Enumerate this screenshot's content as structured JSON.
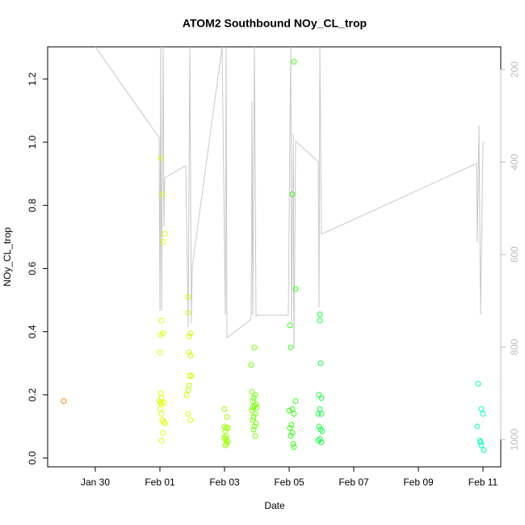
{
  "chart_data": {
    "type": "scatter",
    "title": "ATOM2 Southbound NOy_CL_trop",
    "x_label": "Date",
    "y_label": "NOy_CL_trop",
    "xlim": [
      28.525,
      42.55
    ],
    "ylim": [
      -0.028,
      1.302
    ],
    "y2lim": [
      1059,
      151
    ],
    "xticks": [
      {
        "value": 30,
        "label": "Jan 30"
      },
      {
        "value": 32,
        "label": "Feb 01"
      },
      {
        "value": 34,
        "label": "Feb 03"
      },
      {
        "value": 36,
        "label": "Feb 05"
      },
      {
        "value": 38,
        "label": "Feb 07"
      },
      {
        "value": 40,
        "label": "Feb 09"
      },
      {
        "value": 42,
        "label": "Feb 11"
      }
    ],
    "yticks": [
      {
        "value": 0,
        "label": "0.0"
      },
      0.2,
      0.4,
      0.6,
      0.8,
      {
        "value": 1,
        "label": "1.0"
      },
      1.2
    ],
    "y2ticks": [
      200,
      400,
      600,
      800,
      1000
    ],
    "y2_color": "#bbbbbb",
    "series": [
      {
        "color": "#ff8000",
        "x": [
          29.025
        ],
        "values": [
          0.18
        ]
      },
      {
        "color": "#e0ff00",
        "x": [
          32.025,
          32.075,
          32.15,
          32.1,
          32.05,
          32.1,
          32.025,
          32.0,
          32.025,
          32.05,
          31.975,
          32.025,
          32.125,
          32.05,
          32.0,
          32.05,
          32.075,
          32.125,
          32.15,
          32.1,
          32.05
        ],
        "values": [
          0.95,
          0.835,
          0.71,
          0.685,
          0.435,
          0.395,
          0.39,
          0.335,
          0.205,
          0.19,
          0.18,
          0.175,
          0.175,
          0.17,
          0.155,
          0.14,
          0.12,
          0.115,
          0.11,
          0.08,
          0.055
        ]
      },
      {
        "color": "#c8ff00",
        "x": [
          32.875,
          32.875,
          32.95,
          32.9,
          32.9,
          32.95,
          32.925,
          32.975,
          32.9,
          32.875,
          32.825,
          32.875,
          32.95
        ],
        "values": [
          0.51,
          0.46,
          0.395,
          0.385,
          0.335,
          0.325,
          0.26,
          0.26,
          0.23,
          0.215,
          0.2,
          0.14,
          0.12
        ]
      },
      {
        "color": "#99ff00",
        "x": [
          34.0,
          34.075,
          34.0,
          34.05,
          34.1,
          34.025,
          34.05,
          34.0,
          34.025,
          34.075,
          34.1,
          34.05,
          34.025
        ],
        "values": [
          0.155,
          0.13,
          0.1,
          0.095,
          0.095,
          0.085,
          0.07,
          0.065,
          0.06,
          0.055,
          0.05,
          0.045,
          0.04
        ]
      },
      {
        "color": "#6eff00",
        "x": [
          34.925,
          34.825,
          34.85,
          34.95,
          34.9,
          34.875,
          34.975,
          34.925,
          34.875,
          35.0,
          34.85,
          34.95,
          34.9,
          34.875,
          34.975,
          34.925,
          34.9,
          34.95
        ],
        "values": [
          0.35,
          0.295,
          0.21,
          0.2,
          0.19,
          0.18,
          0.17,
          0.165,
          0.16,
          0.16,
          0.15,
          0.14,
          0.13,
          0.12,
          0.11,
          0.1,
          0.09,
          0.07
        ]
      },
      {
        "color": "#33ff11",
        "x": [
          36.15,
          36.1,
          36.2,
          36.025,
          36.05,
          36.2,
          36.1,
          36.0,
          36.15,
          36.075,
          36.025,
          36.1,
          36.05,
          36.125,
          36.15
        ],
        "values": [
          1.255,
          0.835,
          0.535,
          0.42,
          0.35,
          0.18,
          0.155,
          0.15,
          0.14,
          0.105,
          0.095,
          0.08,
          0.07,
          0.045,
          0.035
        ]
      },
      {
        "color": "#11ff44",
        "x": [
          36.95,
          36.95,
          36.975,
          36.925,
          37.0,
          36.95,
          37.0,
          36.9,
          36.925,
          36.975,
          37.025,
          36.95,
          36.9,
          37.0
        ],
        "values": [
          0.455,
          0.435,
          0.3,
          0.2,
          0.19,
          0.155,
          0.14,
          0.14,
          0.1,
          0.09,
          0.085,
          0.06,
          0.055,
          0.05
        ]
      },
      {
        "color": "#00ffbb",
        "x": [
          41.85,
          41.95,
          42.0,
          41.825,
          41.9,
          41.925,
          41.95,
          42.025
        ],
        "values": [
          0.235,
          0.155,
          0.14,
          0.1,
          0.055,
          0.05,
          0.04,
          0.025
        ]
      },
      {
        "type": "line",
        "axis": "y2",
        "color": "#c8c8c8",
        "x": [
          30,
          31.975,
          32.0,
          32.025,
          32.05,
          32.1,
          32.125,
          32.15,
          32.8,
          32.875,
          32.925,
          32.975,
          33.0,
          33.925,
          34.025,
          34.05,
          34.075,
          34.825,
          34.85,
          34.875,
          34.925,
          34.975,
          35.0,
          35.975,
          36.025,
          36.05,
          36.075,
          36.125,
          36.15,
          36.2,
          36.9,
          36.925,
          36.95,
          37.0,
          41.8,
          41.825,
          41.875,
          41.925,
          42.0
        ],
        "values": [
          151,
          347,
          722,
          151,
          722,
          151,
          539,
          434,
          408,
          757,
          151,
          748,
          626,
          151,
          731,
          151,
          780,
          740,
          268,
          731,
          151,
          734,
          731,
          731,
          329,
          151,
          748,
          338,
          801,
          355,
          399,
          714,
          151,
          556,
          403,
          574,
          321,
          731,
          355
        ]
      }
    ]
  }
}
